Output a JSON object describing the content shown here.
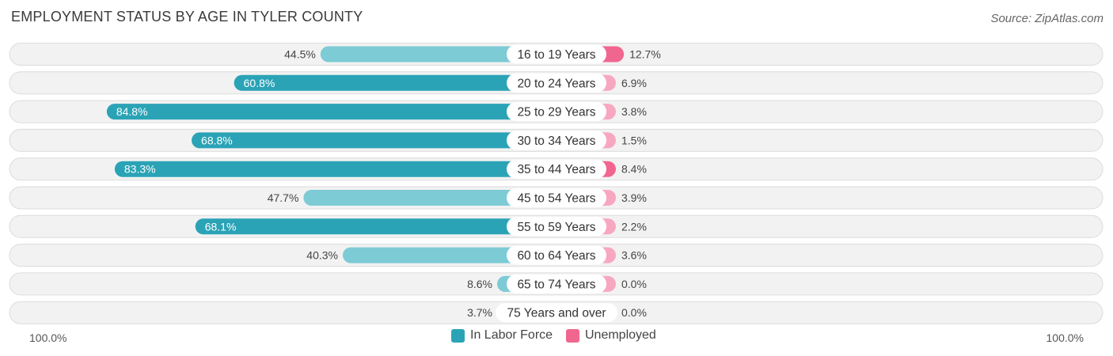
{
  "title": "EMPLOYMENT STATUS BY AGE IN TYLER COUNTY",
  "source": "Source: ZipAtlas.com",
  "colors": {
    "labor_strong": "#2ba3b6",
    "labor_light": "#7ccbd5",
    "unemployed_strong": "#f0668f",
    "unemployed_light": "#f7a8c0",
    "row_bg": "#f2f2f2",
    "row_border": "#dcdcdc"
  },
  "legend": {
    "labor_label": "In Labor Force",
    "unemployed_label": "Unemployed"
  },
  "axis": {
    "left_label": "100.0%",
    "right_label": "100.0%"
  },
  "chart_data": {
    "type": "bar",
    "orientation": "horizontal-diverging",
    "title": "EMPLOYMENT STATUS BY AGE IN TYLER COUNTY",
    "categories": [
      "16 to 19 Years",
      "20 to 24 Years",
      "25 to 29 Years",
      "30 to 34 Years",
      "35 to 44 Years",
      "45 to 54 Years",
      "55 to 59 Years",
      "60 to 64 Years",
      "65 to 74 Years",
      "75 Years and over"
    ],
    "series": [
      {
        "name": "In Labor Force",
        "values": [
          44.5,
          60.8,
          84.8,
          68.8,
          83.3,
          47.7,
          68.1,
          40.3,
          8.6,
          3.7
        ],
        "labels": [
          "44.5%",
          "60.8%",
          "84.8%",
          "68.8%",
          "83.3%",
          "47.7%",
          "68.1%",
          "40.3%",
          "8.6%",
          "3.7%"
        ]
      },
      {
        "name": "Unemployed",
        "values": [
          12.7,
          6.9,
          3.8,
          1.5,
          8.4,
          3.9,
          2.2,
          3.6,
          0.0,
          0.0
        ],
        "labels": [
          "12.7%",
          "6.9%",
          "3.8%",
          "1.5%",
          "8.4%",
          "3.9%",
          "2.2%",
          "3.6%",
          "0.0%",
          "0.0%"
        ]
      }
    ],
    "xlim": [
      -100,
      100
    ],
    "legend_position": "bottom-center"
  }
}
